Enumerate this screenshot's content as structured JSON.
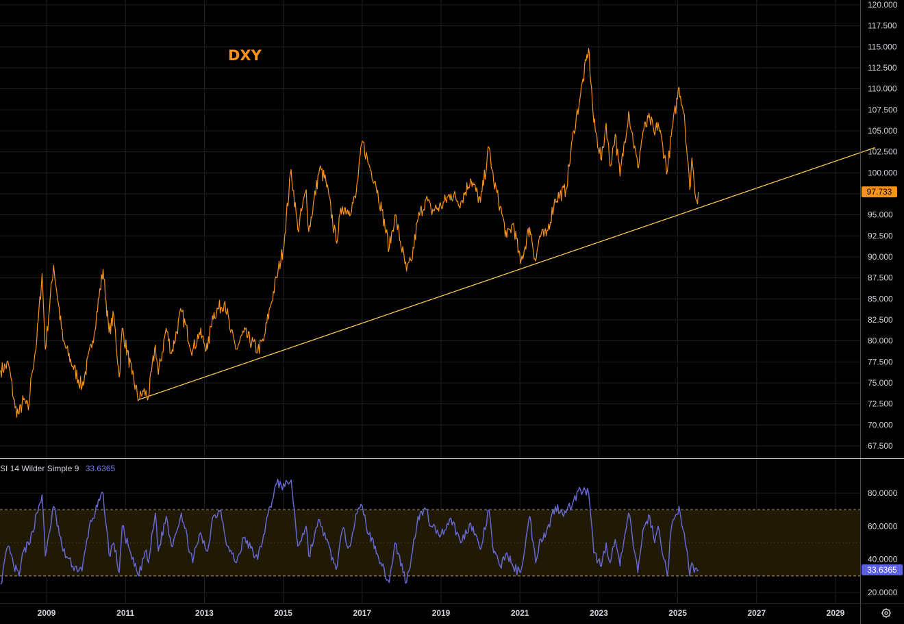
{
  "chart_data": [
    {
      "type": "line",
      "symbol": "DXY",
      "series": [
        {
          "name": "DXY",
          "color": "#f7931a",
          "points": [
            [
              "2007-11-01",
              76.5
            ],
            [
              "2008-01-15",
              77.2
            ],
            [
              "2008-03-15",
              72.0
            ],
            [
              "2008-04-20",
              71.3
            ],
            [
              "2008-06-01",
              73.0
            ],
            [
              "2008-07-15",
              71.8
            ],
            [
              "2008-08-15",
              76.0
            ],
            [
              "2008-10-01",
              80.0
            ],
            [
              "2008-11-20",
              88.0
            ],
            [
              "2008-12-20",
              79.0
            ],
            [
              "2009-03-05",
              89.0
            ],
            [
              "2009-06-01",
              80.0
            ],
            [
              "2009-09-01",
              77.0
            ],
            [
              "2009-11-25",
              74.5
            ],
            [
              "2010-03-01",
              80.0
            ],
            [
              "2010-06-07",
              88.5
            ],
            [
              "2010-08-01",
              81.0
            ],
            [
              "2010-09-15",
              83.0
            ],
            [
              "2010-11-04",
              75.7
            ],
            [
              "2010-12-01",
              81.5
            ],
            [
              "2011-03-01",
              76.0
            ],
            [
              "2011-05-03",
              73.0
            ],
            [
              "2011-06-15",
              74.0
            ],
            [
              "2011-08-01",
              73.4
            ],
            [
              "2011-10-04",
              79.5
            ],
            [
              "2011-11-01",
              76.0
            ],
            [
              "2012-01-13",
              81.5
            ],
            [
              "2012-03-01",
              78.5
            ],
            [
              "2012-06-01",
              83.5
            ],
            [
              "2012-09-14",
              78.8
            ],
            [
              "2012-11-15",
              81.0
            ],
            [
              "2013-02-01",
              79.0
            ],
            [
              "2013-03-15",
              83.0
            ],
            [
              "2013-07-09",
              84.7
            ],
            [
              "2013-09-01",
              81.0
            ],
            [
              "2013-10-25",
              79.0
            ],
            [
              "2014-01-01",
              81.0
            ],
            [
              "2014-05-08",
              78.9
            ],
            [
              "2014-07-01",
              80.0
            ],
            [
              "2014-09-01",
              84.0
            ],
            [
              "2014-11-01",
              87.5
            ],
            [
              "2015-01-01",
              91.0
            ],
            [
              "2015-03-13",
              100.4
            ],
            [
              "2015-05-14",
              93.2
            ],
            [
              "2015-08-01",
              98.0
            ],
            [
              "2015-08-24",
              93.0
            ],
            [
              "2015-12-02",
              100.5
            ],
            [
              "2016-02-01",
              99.0
            ],
            [
              "2016-05-03",
              91.9
            ],
            [
              "2016-06-30",
              96.0
            ],
            [
              "2016-09-01",
              95.5
            ],
            [
              "2016-11-01",
              97.0
            ],
            [
              "2017-01-03",
              103.8
            ],
            [
              "2017-03-01",
              101.0
            ],
            [
              "2017-05-01",
              99.0
            ],
            [
              "2017-07-01",
              95.5
            ],
            [
              "2017-09-08",
              91.0
            ],
            [
              "2017-11-01",
              95.0
            ],
            [
              "2018-02-16",
              88.3
            ],
            [
              "2018-04-01",
              89.5
            ],
            [
              "2018-06-01",
              94.5
            ],
            [
              "2018-08-15",
              96.9
            ],
            [
              "2018-10-01",
              95.5
            ],
            [
              "2019-01-01",
              96.0
            ],
            [
              "2019-04-01",
              97.5
            ],
            [
              "2019-07-01",
              96.5
            ],
            [
              "2019-10-01",
              99.3
            ],
            [
              "2020-01-01",
              96.5
            ],
            [
              "2020-03-19",
              103.0
            ],
            [
              "2020-05-01",
              99.0
            ],
            [
              "2020-07-01",
              96.0
            ],
            [
              "2020-09-01",
              92.3
            ],
            [
              "2020-11-01",
              94.0
            ],
            [
              "2021-01-06",
              89.2
            ],
            [
              "2021-03-31",
              93.5
            ],
            [
              "2021-05-25",
              89.5
            ],
            [
              "2021-07-01",
              92.5
            ],
            [
              "2021-09-01",
              92.5
            ],
            [
              "2021-11-24",
              96.9
            ],
            [
              "2022-03-01",
              98.0
            ],
            [
              "2022-05-13",
              105.0
            ],
            [
              "2022-07-14",
              109.3
            ],
            [
              "2022-09-28",
              114.8
            ],
            [
              "2022-11-15",
              106.0
            ],
            [
              "2023-01-26",
              101.5
            ],
            [
              "2023-03-08",
              105.9
            ],
            [
              "2023-04-14",
              100.8
            ],
            [
              "2023-05-31",
              104.6
            ],
            [
              "2023-07-14",
              99.6
            ],
            [
              "2023-10-03",
              107.3
            ],
            [
              "2023-12-27",
              100.6
            ],
            [
              "2024-02-14",
              104.9
            ],
            [
              "2024-04-16",
              106.5
            ],
            [
              "2024-06-01",
              104.5
            ],
            [
              "2024-07-01",
              106.0
            ],
            [
              "2024-09-27",
              100.2
            ],
            [
              "2024-11-01",
              104.3
            ],
            [
              "2025-01-13",
              110.2
            ],
            [
              "2025-03-01",
              107.0
            ],
            [
              "2025-04-21",
              98.0
            ],
            [
              "2025-05-10",
              101.8
            ],
            [
              "2025-06-01",
              98.8
            ],
            [
              "2025-07-01",
              96.3
            ],
            [
              "2025-07-10",
              97.733
            ]
          ]
        }
      ],
      "trendline": {
        "color": "#f7c94c",
        "points": [
          [
            "2011-05-01",
            73.0
          ],
          [
            "2029-12-31",
            103.0
          ]
        ]
      },
      "last_value_label": "97.733",
      "y_ticks": [
        "120.000",
        "117.500",
        "115.000",
        "112.500",
        "110.000",
        "107.500",
        "105.000",
        "102.500",
        "100.000",
        "97.500",
        "95.000",
        "92.500",
        "90.000",
        "87.500",
        "85.000",
        "82.500",
        "80.000",
        "77.500",
        "75.000",
        "72.500",
        "70.000",
        "67.500"
      ],
      "ylim": [
        66,
        120
      ]
    },
    {
      "type": "line",
      "legend_name": "SI  14 Wilder Simple 9",
      "legend_value": "33.6365",
      "series": [
        {
          "name": "SI  14 Wilder Simple 9",
          "color": "#6667cf",
          "points": [
            [
              "2007-11-01",
              25
            ],
            [
              "2008-01-10",
              48
            ],
            [
              "2008-03-01",
              36
            ],
            [
              "2008-04-20",
              30
            ],
            [
              "2008-06-01",
              45
            ],
            [
              "2008-08-01",
              50
            ],
            [
              "2008-10-01",
              68
            ],
            [
              "2008-11-20",
              79
            ],
            [
              "2008-12-20",
              42
            ],
            [
              "2009-03-05",
              72
            ],
            [
              "2009-06-01",
              45
            ],
            [
              "2009-09-01",
              36
            ],
            [
              "2009-11-25",
              33
            ],
            [
              "2010-02-01",
              60
            ],
            [
              "2010-06-07",
              80
            ],
            [
              "2010-08-01",
              43
            ],
            [
              "2010-09-15",
              50
            ],
            [
              "2010-11-04",
              32
            ],
            [
              "2010-12-01",
              60
            ],
            [
              "2011-03-01",
              40
            ],
            [
              "2011-05-03",
              30
            ],
            [
              "2011-07-01",
              45
            ],
            [
              "2011-08-01",
              38
            ],
            [
              "2011-10-04",
              68
            ],
            [
              "2011-11-01",
              45
            ],
            [
              "2012-01-13",
              66
            ],
            [
              "2012-03-01",
              48
            ],
            [
              "2012-06-01",
              68
            ],
            [
              "2012-09-14",
              38
            ],
            [
              "2012-11-15",
              55
            ],
            [
              "2013-02-01",
              45
            ],
            [
              "2013-03-15",
              65
            ],
            [
              "2013-06-01",
              70
            ],
            [
              "2013-08-01",
              48
            ],
            [
              "2013-10-25",
              38
            ],
            [
              "2014-01-01",
              53
            ],
            [
              "2014-05-08",
              40
            ],
            [
              "2014-07-01",
              55
            ],
            [
              "2014-09-01",
              72
            ],
            [
              "2014-11-01",
              86
            ],
            [
              "2015-01-15",
              84
            ],
            [
              "2015-03-13",
              88
            ],
            [
              "2015-05-14",
              48
            ],
            [
              "2015-08-01",
              60
            ],
            [
              "2015-08-24",
              42
            ],
            [
              "2015-12-02",
              64
            ],
            [
              "2016-02-01",
              52
            ],
            [
              "2016-05-03",
              34
            ],
            [
              "2016-07-01",
              58
            ],
            [
              "2016-09-01",
              48
            ],
            [
              "2016-11-15",
              68
            ],
            [
              "2017-01-03",
              72
            ],
            [
              "2017-03-01",
              55
            ],
            [
              "2017-05-01",
              48
            ],
            [
              "2017-07-01",
              36
            ],
            [
              "2017-09-08",
              26
            ],
            [
              "2017-11-01",
              50
            ],
            [
              "2018-02-16",
              26
            ],
            [
              "2018-04-01",
              42
            ],
            [
              "2018-06-01",
              66
            ],
            [
              "2018-08-15",
              70
            ],
            [
              "2018-10-01",
              60
            ],
            [
              "2019-01-01",
              55
            ],
            [
              "2019-04-01",
              65
            ],
            [
              "2019-07-01",
              50
            ],
            [
              "2019-10-01",
              62
            ],
            [
              "2020-01-01",
              46
            ],
            [
              "2020-03-19",
              70
            ],
            [
              "2020-05-01",
              44
            ],
            [
              "2020-07-01",
              36
            ],
            [
              "2020-09-01",
              44
            ],
            [
              "2020-11-01",
              35
            ],
            [
              "2021-01-06",
              32
            ],
            [
              "2021-03-31",
              66
            ],
            [
              "2021-05-25",
              38
            ],
            [
              "2021-07-01",
              52
            ],
            [
              "2021-09-01",
              56
            ],
            [
              "2021-11-24",
              72
            ],
            [
              "2022-03-01",
              68
            ],
            [
              "2022-05-13",
              76
            ],
            [
              "2022-07-14",
              82
            ],
            [
              "2022-09-28",
              80
            ],
            [
              "2022-11-15",
              44
            ],
            [
              "2023-01-26",
              36
            ],
            [
              "2023-03-08",
              50
            ],
            [
              "2023-04-14",
              38
            ],
            [
              "2023-05-31",
              52
            ],
            [
              "2023-07-14",
              36
            ],
            [
              "2023-10-03",
              68
            ],
            [
              "2023-12-27",
              32
            ],
            [
              "2024-02-14",
              58
            ],
            [
              "2024-04-16",
              66
            ],
            [
              "2024-06-01",
              50
            ],
            [
              "2024-07-01",
              60
            ],
            [
              "2024-09-27",
              30
            ],
            [
              "2024-11-01",
              58
            ],
            [
              "2025-01-13",
              72
            ],
            [
              "2025-03-01",
              56
            ],
            [
              "2025-04-21",
              30
            ],
            [
              "2025-05-10",
              38
            ],
            [
              "2025-06-01",
              32
            ],
            [
              "2025-07-10",
              33.6365
            ]
          ]
        }
      ],
      "band": {
        "upper": 70,
        "lower": 30,
        "fill": "#1f1906"
      },
      "y_ticks": [
        "80.0000",
        "60.0000",
        "40.0000",
        "20.0000"
      ],
      "ylim": [
        18,
        95
      ]
    }
  ],
  "x_axis": {
    "tick_labels": [
      "2009",
      "2011",
      "2013",
      "2015",
      "2017",
      "2019",
      "2021",
      "2023",
      "2025",
      "2027",
      "2029"
    ],
    "range": [
      "2007-11-01",
      "2030-01-01"
    ]
  },
  "controls": {
    "settings_icon": "gear-icon"
  }
}
